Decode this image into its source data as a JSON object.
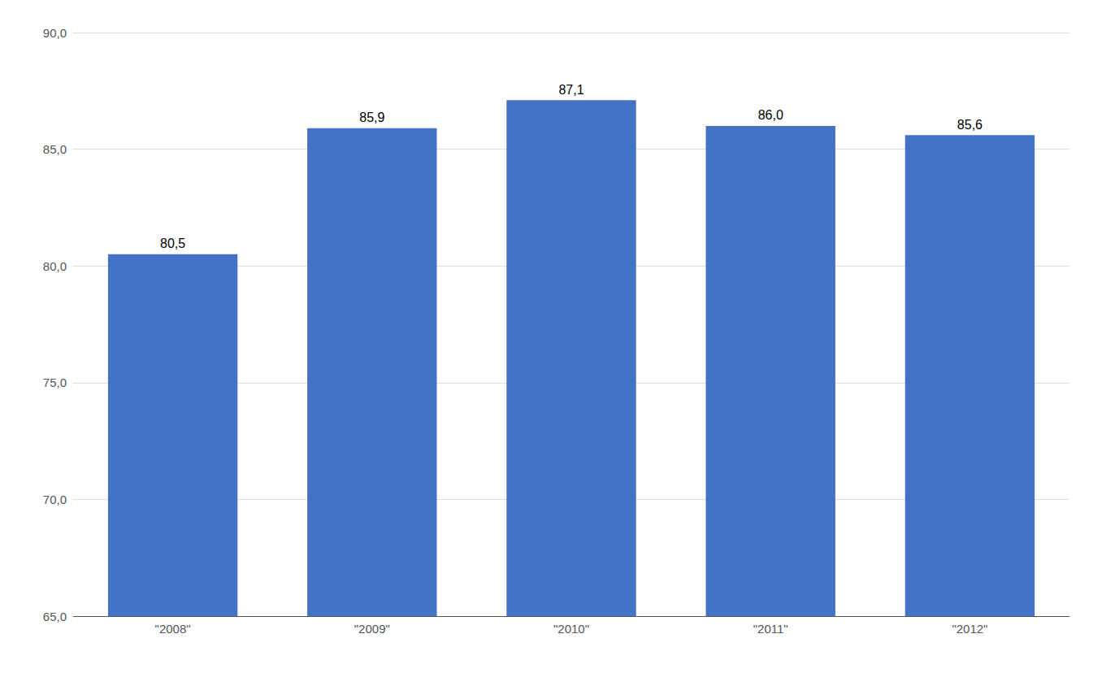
{
  "chart_data": {
    "type": "bar",
    "categories": [
      "\"2008\"",
      "\"2009\"",
      "\"2010\"",
      "\"2011\"",
      "\"2012\""
    ],
    "values": [
      80.5,
      85.9,
      87.1,
      86.0,
      85.6
    ],
    "value_labels": [
      "80,5",
      "85,9",
      "87,1",
      "86,0",
      "85,6"
    ],
    "color": "#4472C4",
    "ylim": [
      65.0,
      90.0
    ],
    "yticks": [
      {
        "value": 65.0,
        "label": "65,0"
      },
      {
        "value": 70.0,
        "label": "70,0"
      },
      {
        "value": 75.0,
        "label": "75,0"
      },
      {
        "value": 80.0,
        "label": "80,0"
      },
      {
        "value": 85.0,
        "label": "85,0"
      },
      {
        "value": 90.0,
        "label": "90,0"
      }
    ],
    "grid": true,
    "data_labels": true
  }
}
